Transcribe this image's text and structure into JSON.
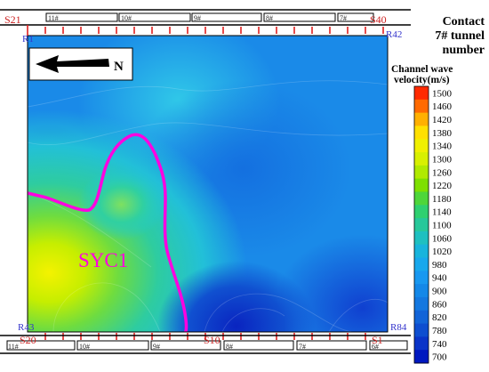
{
  "legend": {
    "title_line1": "Channel wave",
    "title_line2": "velocity(m/s)",
    "ticks": [
      "1500",
      "1460",
      "1420",
      "1380",
      "1340",
      "1300",
      "1260",
      "1220",
      "1180",
      "1140",
      "1100",
      "1060",
      "1020",
      "980",
      "940",
      "900",
      "860",
      "820",
      "780",
      "740",
      "700"
    ],
    "colors": [
      "#ff2a00",
      "#ff6a00",
      "#ffb000",
      "#ffe000",
      "#f0f000",
      "#d8f000",
      "#b0ea00",
      "#7ee000",
      "#4ed63a",
      "#2fd070",
      "#27c89a",
      "#1ec0c0",
      "#18b4dc",
      "#18a8ec",
      "#1898f0",
      "#1488e8",
      "#1478e0",
      "#1264d8",
      "#0e4ed0",
      "#0a34c8",
      "#0018c0"
    ]
  },
  "corner_labels": {
    "top_right_line1": "Contact",
    "top_right_line2": "7# tunnel",
    "top_right_line3": "number"
  },
  "receivers": {
    "top_left": "R1",
    "top_right": "R42",
    "bottom_left": "R43",
    "bottom_right": "R84"
  },
  "sources": {
    "top_left": "S21",
    "top_right": "S40",
    "bottom_left": "S20",
    "bottom_mid": "S10",
    "bottom_right": "S1"
  },
  "north_label": "N",
  "anomaly_label": "SYC1",
  "top_tunnel_segments": [
    "11#",
    "10#",
    "9#",
    "8#",
    "7#"
  ],
  "bottom_tunnel_segments": [
    "11#",
    "10#",
    "9#",
    "8#",
    "7#",
    "6#"
  ],
  "colors": {
    "background_field": "#1a8ae8",
    "anomaly_outline": "#ff00e0",
    "label_red": "#cc2222",
    "label_blue": "#3333cc"
  }
}
